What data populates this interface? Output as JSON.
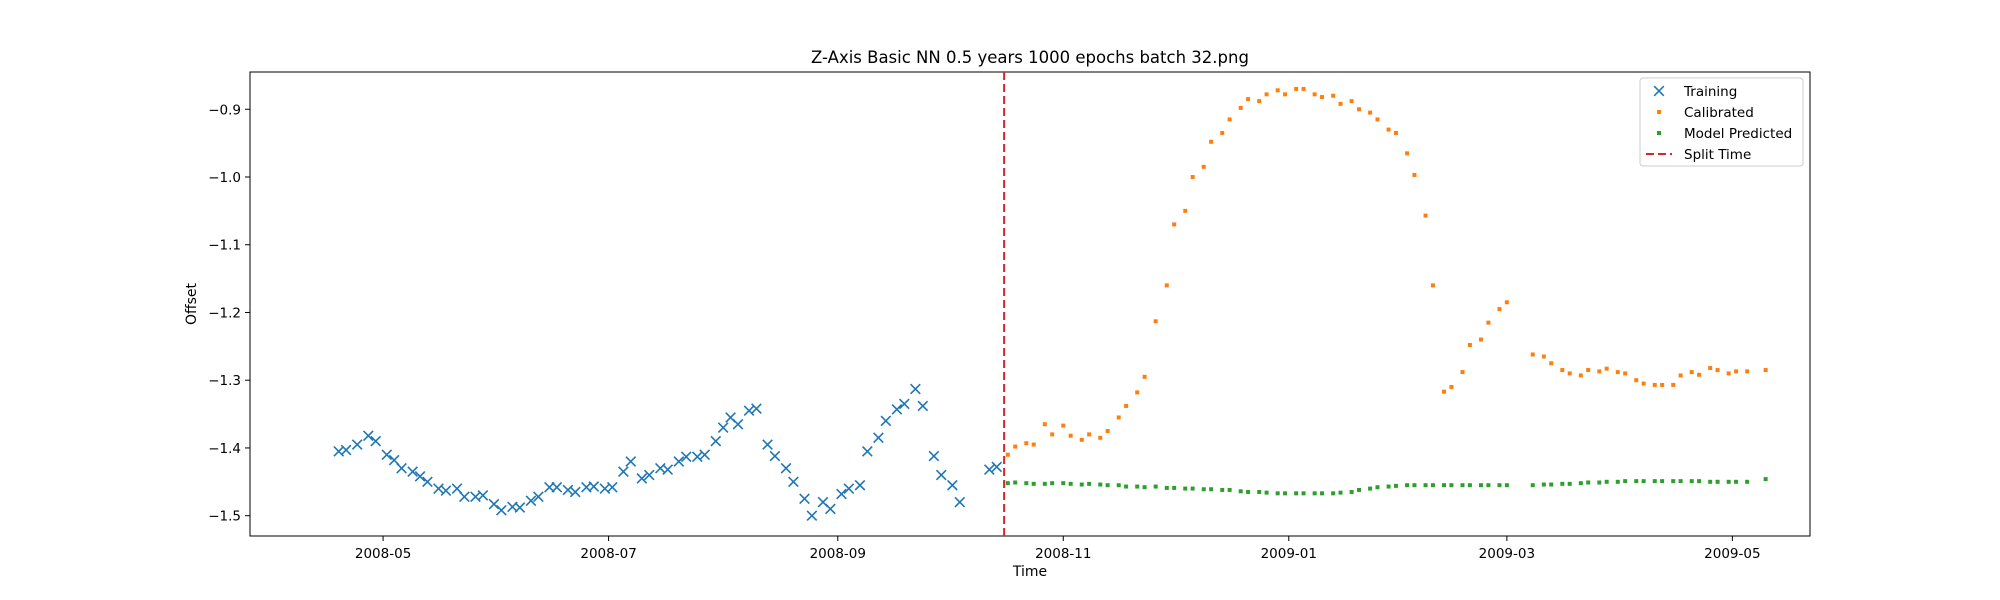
{
  "chart_data": {
    "type": "scatter",
    "title": "Z-Axis Basic NN 0.5 years 1000 epochs batch 32.png",
    "xlabel": "Time",
    "ylabel": "Offset",
    "xlim": [
      "2008-03-26",
      "2009-05-22"
    ],
    "ylim": [
      -1.53,
      -0.845
    ],
    "xticks": [
      "2008-05-01",
      "2008-07-01",
      "2008-09-01",
      "2008-11-01",
      "2009-01-01",
      "2009-03-01",
      "2009-05-01"
    ],
    "xtick_labels": [
      "2008-05",
      "2008-07",
      "2008-09",
      "2008-11",
      "2009-01",
      "2009-03",
      "2009-05"
    ],
    "yticks": [
      -1.5,
      -1.4,
      -1.3,
      -1.2,
      -1.1,
      -1.0,
      -0.9
    ],
    "ytick_labels": [
      "−1.5",
      "−1.4",
      "−1.3",
      "−1.2",
      "−1.1",
      "−1.0",
      "−0.9"
    ],
    "grid": false,
    "legend_position": "top-right",
    "split_time": "2008-10-16",
    "series": [
      {
        "name": "Training",
        "marker": "x",
        "color": "#1f77b4",
        "points": [
          [
            "2008-04-19",
            -1.405
          ],
          [
            "2008-04-21",
            -1.403
          ],
          [
            "2008-04-24",
            -1.395
          ],
          [
            "2008-04-27",
            -1.382
          ],
          [
            "2008-04-29",
            -1.39
          ],
          [
            "2008-05-02",
            -1.41
          ],
          [
            "2008-05-04",
            -1.418
          ],
          [
            "2008-05-06",
            -1.43
          ],
          [
            "2008-05-09",
            -1.435
          ],
          [
            "2008-05-11",
            -1.442
          ],
          [
            "2008-05-13",
            -1.45
          ],
          [
            "2008-05-16",
            -1.46
          ],
          [
            "2008-05-18",
            -1.463
          ],
          [
            "2008-05-21",
            -1.46
          ],
          [
            "2008-05-23",
            -1.472
          ],
          [
            "2008-05-26",
            -1.472
          ],
          [
            "2008-05-28",
            -1.47
          ],
          [
            "2008-05-31",
            -1.483
          ],
          [
            "2008-06-02",
            -1.492
          ],
          [
            "2008-06-05",
            -1.487
          ],
          [
            "2008-06-07",
            -1.488
          ],
          [
            "2008-06-10",
            -1.478
          ],
          [
            "2008-06-12",
            -1.472
          ],
          [
            "2008-06-15",
            -1.458
          ],
          [
            "2008-06-17",
            -1.458
          ],
          [
            "2008-06-20",
            -1.462
          ],
          [
            "2008-06-22",
            -1.465
          ],
          [
            "2008-06-25",
            -1.458
          ],
          [
            "2008-06-27",
            -1.457
          ],
          [
            "2008-06-30",
            -1.46
          ],
          [
            "2008-07-02",
            -1.458
          ],
          [
            "2008-07-05",
            -1.435
          ],
          [
            "2008-07-07",
            -1.42
          ],
          [
            "2008-07-10",
            -1.445
          ],
          [
            "2008-07-12",
            -1.44
          ],
          [
            "2008-07-15",
            -1.43
          ],
          [
            "2008-07-17",
            -1.432
          ],
          [
            "2008-07-20",
            -1.42
          ],
          [
            "2008-07-22",
            -1.413
          ],
          [
            "2008-07-25",
            -1.413
          ],
          [
            "2008-07-27",
            -1.41
          ],
          [
            "2008-07-30",
            -1.39
          ],
          [
            "2008-08-01",
            -1.37
          ],
          [
            "2008-08-03",
            -1.355
          ],
          [
            "2008-08-05",
            -1.365
          ],
          [
            "2008-08-08",
            -1.345
          ],
          [
            "2008-08-10",
            -1.342
          ],
          [
            "2008-08-13",
            -1.395
          ],
          [
            "2008-08-15",
            -1.412
          ],
          [
            "2008-08-18",
            -1.43
          ],
          [
            "2008-08-20",
            -1.45
          ],
          [
            "2008-08-23",
            -1.475
          ],
          [
            "2008-08-25",
            -1.5
          ],
          [
            "2008-08-28",
            -1.48
          ],
          [
            "2008-08-30",
            -1.49
          ],
          [
            "2008-09-02",
            -1.468
          ],
          [
            "2008-09-04",
            -1.46
          ],
          [
            "2008-09-07",
            -1.455
          ],
          [
            "2008-09-09",
            -1.405
          ],
          [
            "2008-09-12",
            -1.385
          ],
          [
            "2008-09-14",
            -1.36
          ],
          [
            "2008-09-17",
            -1.343
          ],
          [
            "2008-09-19",
            -1.335
          ],
          [
            "2008-09-22",
            -1.313
          ],
          [
            "2008-09-24",
            -1.338
          ],
          [
            "2008-09-27",
            -1.412
          ],
          [
            "2008-09-29",
            -1.44
          ],
          [
            "2008-10-02",
            -1.455
          ],
          [
            "2008-10-04",
            -1.48
          ],
          [
            "2008-10-12",
            -1.432
          ],
          [
            "2008-10-14",
            -1.428
          ]
        ]
      },
      {
        "name": "Calibrated",
        "marker": "square",
        "color": "#ff7f0e",
        "points": [
          [
            "2008-10-17",
            -1.41
          ],
          [
            "2008-10-19",
            -1.398
          ],
          [
            "2008-10-22",
            -1.393
          ],
          [
            "2008-10-24",
            -1.395
          ],
          [
            "2008-10-27",
            -1.365
          ],
          [
            "2008-10-29",
            -1.38
          ],
          [
            "2008-11-01",
            -1.367
          ],
          [
            "2008-11-03",
            -1.382
          ],
          [
            "2008-11-06",
            -1.388
          ],
          [
            "2008-11-08",
            -1.38
          ],
          [
            "2008-11-11",
            -1.385
          ],
          [
            "2008-11-13",
            -1.375
          ],
          [
            "2008-11-16",
            -1.355
          ],
          [
            "2008-11-18",
            -1.338
          ],
          [
            "2008-11-21",
            -1.318
          ],
          [
            "2008-11-23",
            -1.295
          ],
          [
            "2008-11-26",
            -1.213
          ],
          [
            "2008-11-29",
            -1.16
          ],
          [
            "2008-12-01",
            -1.07
          ],
          [
            "2008-12-04",
            -1.05
          ],
          [
            "2008-12-06",
            -1.0
          ],
          [
            "2008-12-09",
            -0.985
          ],
          [
            "2008-12-11",
            -0.948
          ],
          [
            "2008-12-14",
            -0.935
          ],
          [
            "2008-12-16",
            -0.915
          ],
          [
            "2008-12-19",
            -0.898
          ],
          [
            "2008-12-21",
            -0.885
          ],
          [
            "2008-12-24",
            -0.888
          ],
          [
            "2008-12-26",
            -0.878
          ],
          [
            "2008-12-29",
            -0.872
          ],
          [
            "2008-12-31",
            -0.878
          ],
          [
            "2009-01-03",
            -0.87
          ],
          [
            "2009-01-05",
            -0.87
          ],
          [
            "2009-01-08",
            -0.878
          ],
          [
            "2009-01-10",
            -0.882
          ],
          [
            "2009-01-13",
            -0.88
          ],
          [
            "2009-01-15",
            -0.892
          ],
          [
            "2009-01-18",
            -0.888
          ],
          [
            "2009-01-20",
            -0.9
          ],
          [
            "2009-01-23",
            -0.905
          ],
          [
            "2009-01-25",
            -0.915
          ],
          [
            "2009-01-28",
            -0.93
          ],
          [
            "2009-01-30",
            -0.935
          ],
          [
            "2009-02-02",
            -0.965
          ],
          [
            "2009-02-04",
            -0.997
          ],
          [
            "2009-02-07",
            -1.057
          ],
          [
            "2009-02-09",
            -1.16
          ],
          [
            "2009-02-12",
            -1.317
          ],
          [
            "2009-02-14",
            -1.31
          ],
          [
            "2009-02-17",
            -1.288
          ],
          [
            "2009-02-19",
            -1.248
          ],
          [
            "2009-02-22",
            -1.24
          ],
          [
            "2009-02-24",
            -1.215
          ],
          [
            "2009-02-27",
            -1.195
          ],
          [
            "2009-03-01",
            -1.185
          ],
          [
            "2009-03-08",
            -1.262
          ],
          [
            "2009-03-11",
            -1.265
          ],
          [
            "2009-03-13",
            -1.275
          ],
          [
            "2009-03-16",
            -1.285
          ],
          [
            "2009-03-18",
            -1.29
          ],
          [
            "2009-03-21",
            -1.293
          ],
          [
            "2009-03-23",
            -1.285
          ],
          [
            "2009-03-26",
            -1.287
          ],
          [
            "2009-03-28",
            -1.283
          ],
          [
            "2009-03-31",
            -1.288
          ],
          [
            "2009-04-02",
            -1.29
          ],
          [
            "2009-04-05",
            -1.3
          ],
          [
            "2009-04-07",
            -1.305
          ],
          [
            "2009-04-10",
            -1.307
          ],
          [
            "2009-04-12",
            -1.307
          ],
          [
            "2009-04-15",
            -1.307
          ],
          [
            "2009-04-17",
            -1.293
          ],
          [
            "2009-04-20",
            -1.288
          ],
          [
            "2009-04-22",
            -1.292
          ],
          [
            "2009-04-25",
            -1.282
          ],
          [
            "2009-04-27",
            -1.285
          ],
          [
            "2009-04-30",
            -1.29
          ],
          [
            "2009-05-02",
            -1.287
          ],
          [
            "2009-05-05",
            -1.287
          ],
          [
            "2009-05-10",
            -1.285
          ]
        ]
      },
      {
        "name": "Model Predicted",
        "marker": "square",
        "color": "#2ca02c",
        "points": [
          [
            "2008-10-17",
            -1.452
          ],
          [
            "2008-10-19",
            -1.451
          ],
          [
            "2008-10-22",
            -1.452
          ],
          [
            "2008-10-24",
            -1.453
          ],
          [
            "2008-10-27",
            -1.453
          ],
          [
            "2008-10-29",
            -1.452
          ],
          [
            "2008-11-01",
            -1.452
          ],
          [
            "2008-11-03",
            -1.453
          ],
          [
            "2008-11-06",
            -1.454
          ],
          [
            "2008-11-08",
            -1.453
          ],
          [
            "2008-11-11",
            -1.454
          ],
          [
            "2008-11-13",
            -1.455
          ],
          [
            "2008-11-16",
            -1.455
          ],
          [
            "2008-11-18",
            -1.457
          ],
          [
            "2008-11-21",
            -1.457
          ],
          [
            "2008-11-23",
            -1.458
          ],
          [
            "2008-11-26",
            -1.457
          ],
          [
            "2008-11-29",
            -1.459
          ],
          [
            "2008-12-01",
            -1.459
          ],
          [
            "2008-12-04",
            -1.46
          ],
          [
            "2008-12-06",
            -1.46
          ],
          [
            "2008-12-09",
            -1.461
          ],
          [
            "2008-12-11",
            -1.461
          ],
          [
            "2008-12-14",
            -1.462
          ],
          [
            "2008-12-16",
            -1.462
          ],
          [
            "2008-12-19",
            -1.464
          ],
          [
            "2008-12-21",
            -1.465
          ],
          [
            "2008-12-24",
            -1.465
          ],
          [
            "2008-12-26",
            -1.466
          ],
          [
            "2008-12-29",
            -1.467
          ],
          [
            "2008-12-31",
            -1.467
          ],
          [
            "2009-01-03",
            -1.467
          ],
          [
            "2009-01-05",
            -1.467
          ],
          [
            "2009-01-08",
            -1.467
          ],
          [
            "2009-01-10",
            -1.467
          ],
          [
            "2009-01-13",
            -1.467
          ],
          [
            "2009-01-15",
            -1.466
          ],
          [
            "2009-01-18",
            -1.465
          ],
          [
            "2009-01-20",
            -1.462
          ],
          [
            "2009-01-23",
            -1.46
          ],
          [
            "2009-01-25",
            -1.458
          ],
          [
            "2009-01-28",
            -1.457
          ],
          [
            "2009-01-30",
            -1.456
          ],
          [
            "2009-02-02",
            -1.455
          ],
          [
            "2009-02-04",
            -1.455
          ],
          [
            "2009-02-07",
            -1.455
          ],
          [
            "2009-02-09",
            -1.455
          ],
          [
            "2009-02-12",
            -1.455
          ],
          [
            "2009-02-14",
            -1.455
          ],
          [
            "2009-02-17",
            -1.455
          ],
          [
            "2009-02-19",
            -1.455
          ],
          [
            "2009-02-22",
            -1.455
          ],
          [
            "2009-02-24",
            -1.455
          ],
          [
            "2009-02-27",
            -1.455
          ],
          [
            "2009-03-01",
            -1.455
          ],
          [
            "2009-03-08",
            -1.455
          ],
          [
            "2009-03-11",
            -1.454
          ],
          [
            "2009-03-13",
            -1.454
          ],
          [
            "2009-03-16",
            -1.453
          ],
          [
            "2009-03-18",
            -1.453
          ],
          [
            "2009-03-21",
            -1.452
          ],
          [
            "2009-03-23",
            -1.451
          ],
          [
            "2009-03-26",
            -1.451
          ],
          [
            "2009-03-28",
            -1.45
          ],
          [
            "2009-03-31",
            -1.45
          ],
          [
            "2009-04-02",
            -1.449
          ],
          [
            "2009-04-05",
            -1.449
          ],
          [
            "2009-04-07",
            -1.449
          ],
          [
            "2009-04-10",
            -1.449
          ],
          [
            "2009-04-12",
            -1.449
          ],
          [
            "2009-04-15",
            -1.449
          ],
          [
            "2009-04-17",
            -1.449
          ],
          [
            "2009-04-20",
            -1.449
          ],
          [
            "2009-04-22",
            -1.449
          ],
          [
            "2009-04-25",
            -1.45
          ],
          [
            "2009-04-27",
            -1.45
          ],
          [
            "2009-04-30",
            -1.45
          ],
          [
            "2009-05-02",
            -1.45
          ],
          [
            "2009-05-05",
            -1.45
          ],
          [
            "2009-05-10",
            -1.446
          ]
        ]
      }
    ],
    "lines": [
      {
        "name": "Split Time",
        "style": "dashed",
        "color": "#d62728",
        "orientation": "vertical",
        "x": "2008-10-16"
      }
    ]
  }
}
